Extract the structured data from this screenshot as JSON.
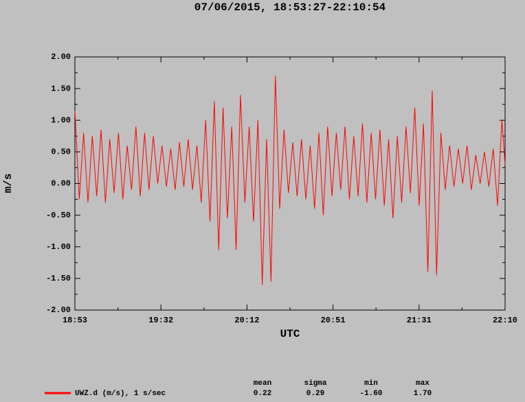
{
  "chart_data": {
    "type": "line",
    "title": "07/06/2015, 18:53:27-22:10:54",
    "xlabel": "UTC",
    "ylabel": "m/s",
    "x": [
      0,
      2,
      4,
      6,
      8,
      10,
      12,
      14,
      16,
      18,
      20,
      22,
      24,
      26,
      28,
      30,
      32,
      34,
      36,
      38,
      40,
      42,
      44,
      46,
      48,
      50,
      52,
      54,
      56,
      58,
      60,
      62,
      64,
      66,
      68,
      70,
      72,
      74,
      76,
      78,
      80,
      82,
      84,
      86,
      88,
      90,
      92,
      94,
      96,
      98,
      100,
      102,
      104,
      106,
      108,
      110,
      112,
      114,
      116,
      118,
      120,
      122,
      124,
      126,
      128,
      130,
      132,
      134,
      136,
      138,
      140,
      142,
      144,
      146,
      148,
      150,
      152,
      154,
      156,
      158,
      160,
      162,
      164,
      166,
      168,
      170,
      172,
      174,
      176,
      178,
      180,
      182,
      184,
      186,
      188,
      190,
      192,
      194,
      196,
      197.45
    ],
    "series": [
      {
        "name": "UWZ.d (m/s), 1 s/sec",
        "color": "#ff0000",
        "values": [
          1.15,
          -0.25,
          0.8,
          -0.3,
          0.75,
          -0.2,
          0.85,
          -0.3,
          0.7,
          -0.15,
          0.8,
          -0.25,
          0.6,
          -0.1,
          0.9,
          -0.2,
          0.8,
          -0.1,
          0.75,
          0.0,
          0.6,
          -0.05,
          0.55,
          -0.1,
          0.65,
          -0.05,
          0.7,
          -0.1,
          0.6,
          -0.3,
          1.0,
          -0.6,
          1.3,
          -1.05,
          1.2,
          -0.55,
          0.9,
          -1.05,
          1.4,
          -0.3,
          0.9,
          -0.6,
          1.0,
          -1.6,
          0.7,
          -1.55,
          1.7,
          -0.4,
          0.85,
          -0.15,
          0.65,
          -0.2,
          0.7,
          -0.25,
          0.6,
          -0.4,
          0.8,
          -0.5,
          0.9,
          -0.2,
          0.8,
          -0.1,
          0.9,
          -0.25,
          0.75,
          -0.2,
          0.95,
          -0.3,
          0.8,
          -0.25,
          0.85,
          -0.35,
          0.7,
          -0.55,
          0.75,
          -0.3,
          0.9,
          -0.15,
          1.2,
          -0.35,
          0.95,
          -1.4,
          1.47,
          -1.45,
          0.8,
          -0.1,
          0.6,
          -0.05,
          0.55,
          0.0,
          0.6,
          -0.1,
          0.45,
          0.0,
          0.5,
          -0.05,
          0.55,
          -0.35,
          1.0,
          0.3
        ]
      }
    ],
    "xlim": [
      0,
      197.45
    ],
    "xticks": [
      {
        "value": 0,
        "label": "18:53"
      },
      {
        "value": 39.49,
        "label": "19:32"
      },
      {
        "value": 78.98,
        "label": "20:12"
      },
      {
        "value": 118.47,
        "label": "20:51"
      },
      {
        "value": 157.96,
        "label": "21:31"
      },
      {
        "value": 197.45,
        "label": "22:10"
      }
    ],
    "xminorticks": [
      19.745,
      59.235,
      98.725,
      138.215,
      177.705
    ],
    "ylim": [
      -2,
      2
    ],
    "yticks": [
      {
        "value": 2,
        "label": "2.00"
      },
      {
        "value": 1.5,
        "label": "1.50"
      },
      {
        "value": 1,
        "label": "1.00"
      },
      {
        "value": 0.5,
        "label": "0.50"
      },
      {
        "value": 0,
        "label": "0.00"
      },
      {
        "value": -0.5,
        "label": "-0.50"
      },
      {
        "value": -1,
        "label": "-1.00"
      },
      {
        "value": -1.5,
        "label": "-1.50"
      },
      {
        "value": -2,
        "label": "-2.00"
      }
    ],
    "yminorticks": [
      1.75,
      1.25,
      0.75,
      0.25,
      -0.25,
      -0.75,
      -1.25,
      -1.75
    ],
    "stats": {
      "headers": [
        "mean",
        "sigma",
        "min",
        "max"
      ],
      "values": [
        "0.22",
        "0.29",
        "-1.60",
        "1.70"
      ]
    }
  }
}
